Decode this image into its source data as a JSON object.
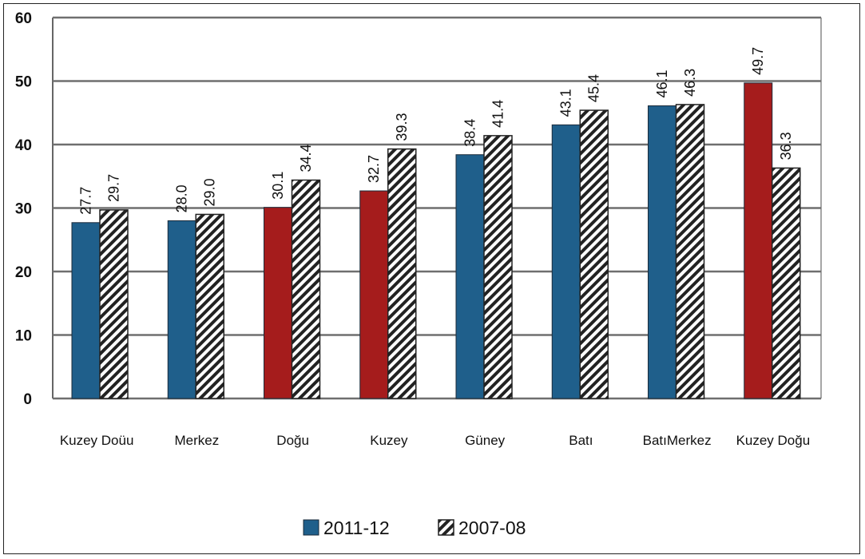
{
  "chart_data": {
    "type": "bar",
    "title": "",
    "xlabel": "",
    "ylabel": "",
    "ylim": [
      0,
      60
    ],
    "yticks": [
      "0",
      "10",
      "20",
      "30",
      "40",
      "50",
      "60"
    ],
    "categories": [
      "Kuzey Doüu",
      "Merkez",
      "Doğu",
      "Kuzey",
      "Güney",
      "Batı",
      "BatıMerkez",
      "Kuzey Doğu"
    ],
    "series": [
      {
        "name": "2011-12",
        "values": [
          27.7,
          28.0,
          30.1,
          32.7,
          38.4,
          43.1,
          46.1,
          49.7
        ],
        "labels": [
          "27.7",
          "28.0",
          "30.1",
          "32.7",
          "38.4",
          "43.1",
          "46.1",
          "49.7"
        ],
        "color": "#1f5f8b",
        "highlight_color": "#a51c1c",
        "highlight_categories": [
          2,
          3,
          7
        ]
      },
      {
        "name": "2007-08",
        "values": [
          29.7,
          29.0,
          34.4,
          39.3,
          41.4,
          45.4,
          46.3,
          36.3
        ],
        "labels": [
          "29.7",
          "29.0",
          "34.4",
          "39.3",
          "41.4",
          "45.4",
          "46.3",
          "36.3"
        ],
        "pattern": "diagonal-hatch"
      }
    ],
    "grid": true,
    "legend_position": "bottom-center"
  }
}
